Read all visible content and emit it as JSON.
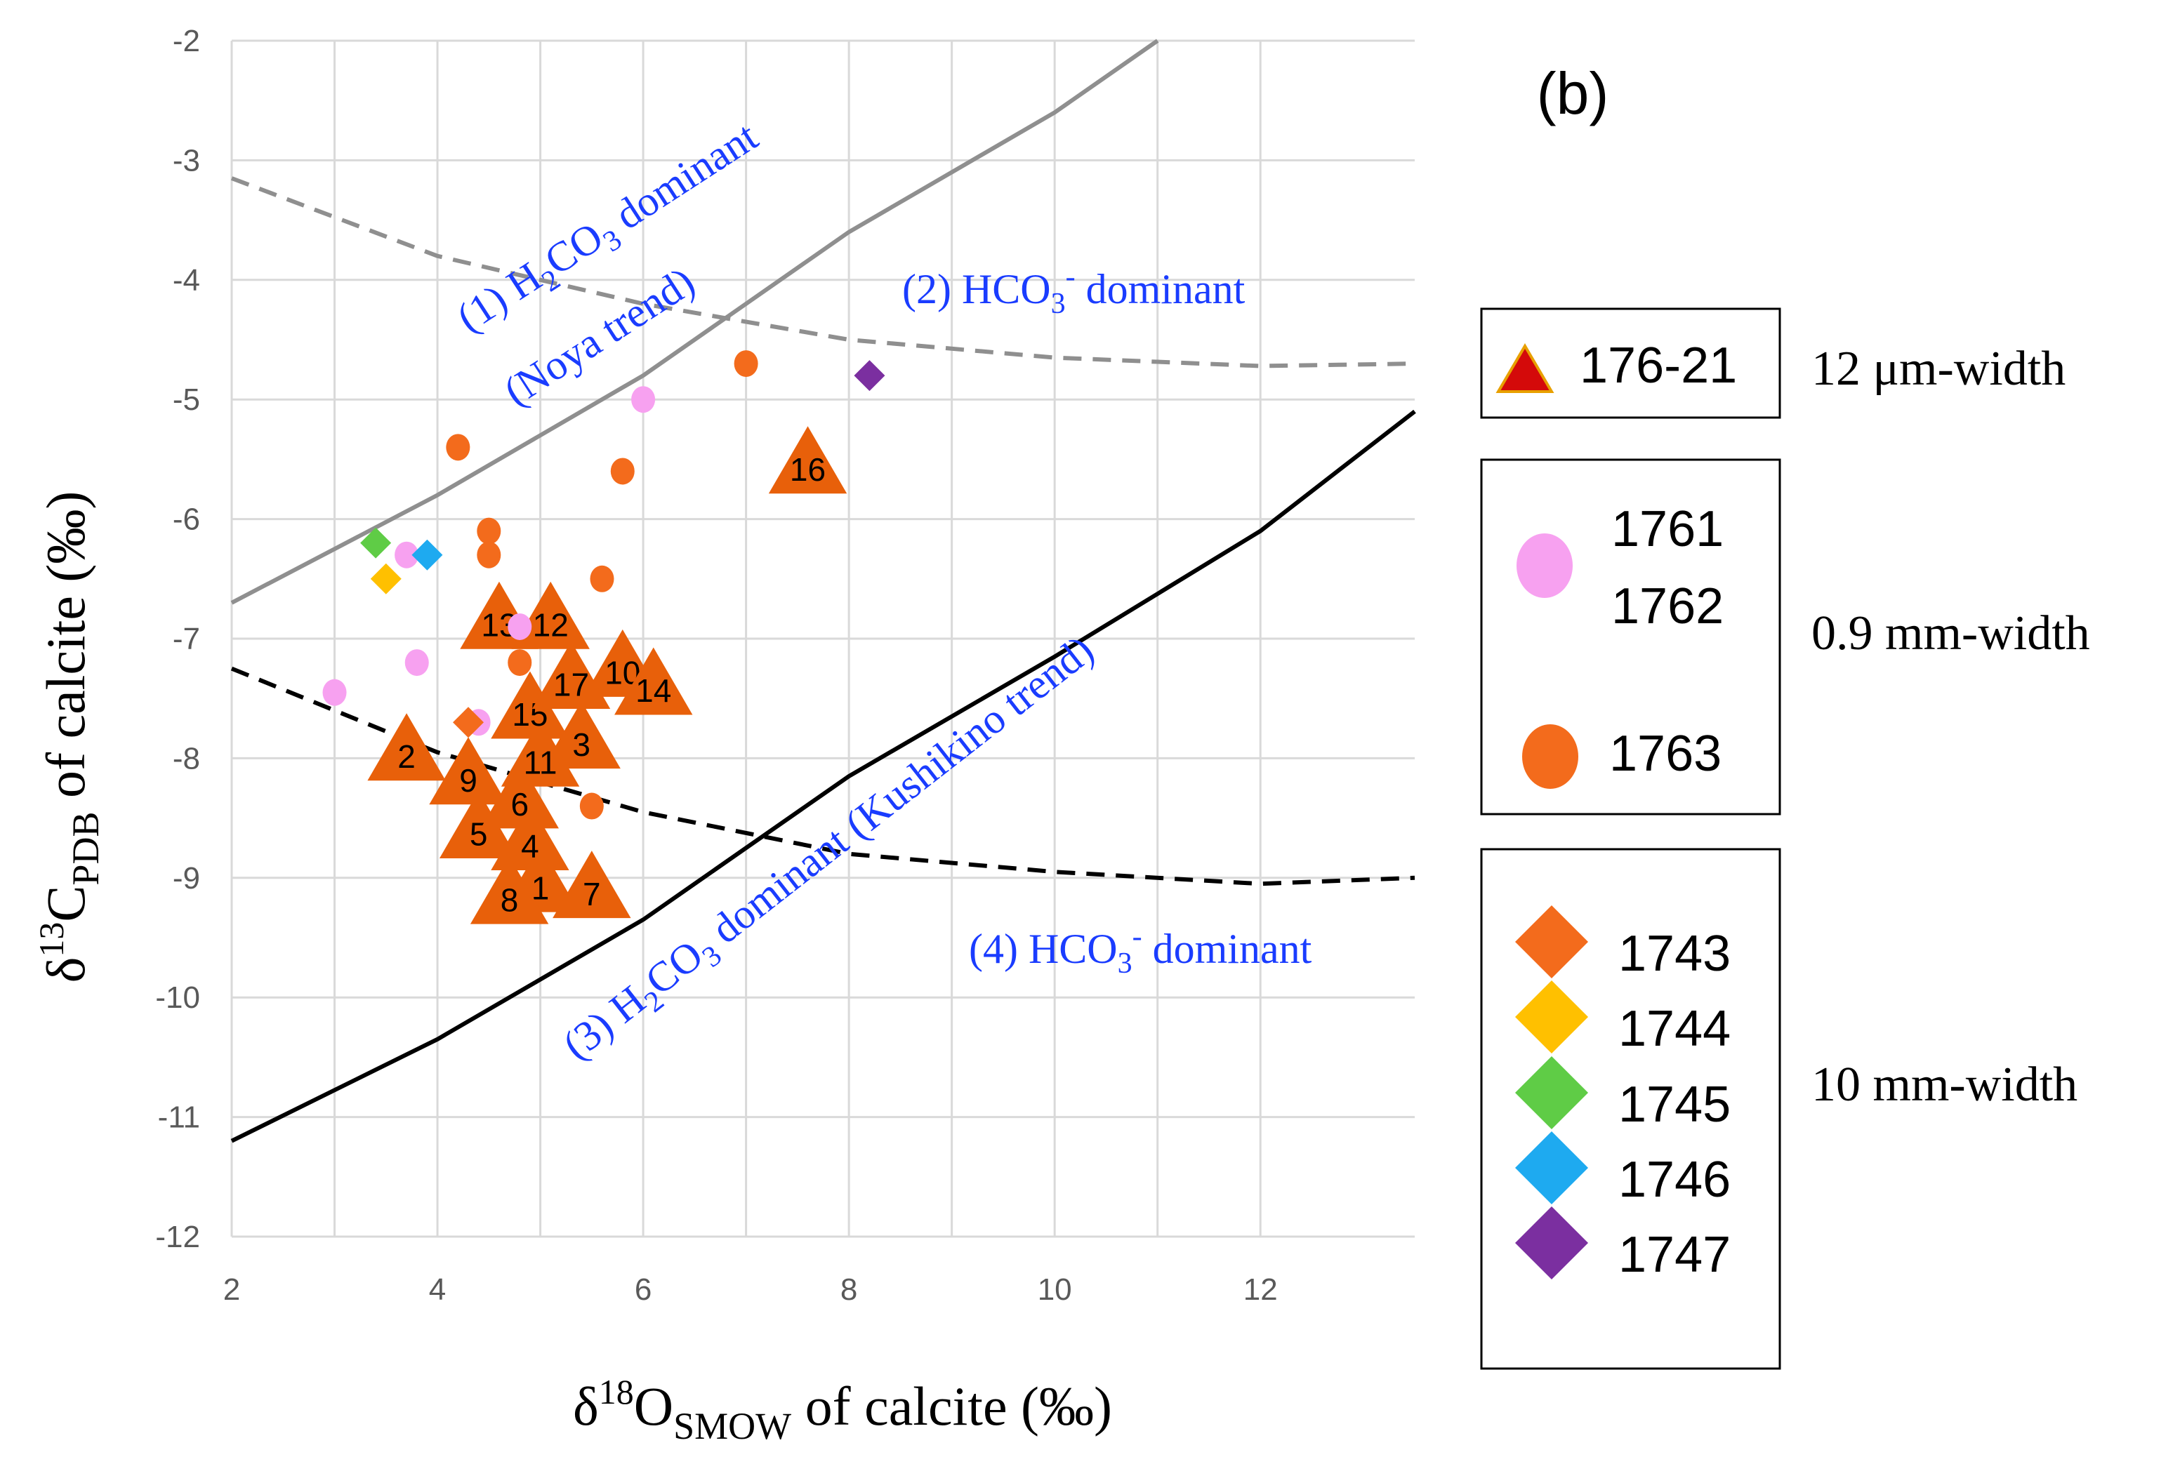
{
  "chart_data": {
    "type": "scatter",
    "panel_label": "(b)",
    "xlabel": {
      "pre": "δ",
      "sup": "18",
      "main": "O",
      "sub": "SMOW",
      "post": " of calcite (‰)"
    },
    "ylabel": {
      "pre": "δ",
      "sup": "13",
      "main": "C",
      "sub": "PDB",
      "post": " of calcite (‰)"
    },
    "xlim": [
      2,
      13.5
    ],
    "ylim": [
      -12,
      -2
    ],
    "x_ticks": [
      2,
      4,
      6,
      8,
      10,
      12
    ],
    "y_ticks": [
      -2,
      -3,
      -4,
      -5,
      -6,
      -7,
      -8,
      -9,
      -10,
      -11,
      -12
    ],
    "grid": true,
    "trend_lines": [
      {
        "name": "H2CO3 dominant (Noya trend)",
        "style": "solid",
        "color": "#8f8f8f",
        "points": [
          [
            2,
            -6.7
          ],
          [
            4,
            -5.8
          ],
          [
            6,
            -4.8
          ],
          [
            8,
            -3.6
          ],
          [
            10,
            -2.6
          ],
          [
            11,
            -2.0
          ]
        ]
      },
      {
        "name": "HCO3- dominant (Noya)",
        "style": "dashed",
        "color": "#8f8f8f",
        "points": [
          [
            2,
            -3.15
          ],
          [
            4,
            -3.8
          ],
          [
            6,
            -4.2
          ],
          [
            8,
            -4.5
          ],
          [
            10,
            -4.65
          ],
          [
            12,
            -4.72
          ],
          [
            13.5,
            -4.7
          ]
        ]
      },
      {
        "name": "H2CO3 dominant (Kushikino trend)",
        "style": "solid",
        "color": "#000000",
        "points": [
          [
            2,
            -11.2
          ],
          [
            4,
            -10.35
          ],
          [
            6,
            -9.35
          ],
          [
            8,
            -8.15
          ],
          [
            10,
            -7.15
          ],
          [
            12,
            -6.1
          ],
          [
            13.5,
            -5.1
          ]
        ]
      },
      {
        "name": "HCO3- dominant (Kushikino)",
        "style": "dashed",
        "color": "#000000",
        "points": [
          [
            2,
            -7.25
          ],
          [
            4,
            -7.95
          ],
          [
            6,
            -8.45
          ],
          [
            8,
            -8.8
          ],
          [
            10,
            -8.95
          ],
          [
            12,
            -9.05
          ],
          [
            13.5,
            -9.0
          ]
        ]
      }
    ],
    "trend_labels": [
      {
        "id": "noya_h2co3_a",
        "pre": "(1) H",
        "sub1": "2",
        "mid": "CO",
        "sub2": "3",
        "post": " dominant"
      },
      {
        "id": "noya_h2co3_b",
        "text": "(Noya trend)"
      },
      {
        "id": "noya_hco3",
        "pre": "(2) HCO",
        "sub1": "3",
        "sup": "-",
        "post": " dominant"
      },
      {
        "id": "kush_h2co3",
        "pre": "(3) H",
        "sub1": "2",
        "mid": "CO",
        "sub2": "3",
        "post": " dominant (Kushikino trend)"
      },
      {
        "id": "kush_hco3",
        "pre": "(4) HCO",
        "sub1": "3",
        "sup": "-",
        "post": " dominant"
      }
    ],
    "series": [
      {
        "name": "176-21",
        "marker": "triangle",
        "color": "#e8600a",
        "points": [
          {
            "label": "1",
            "x": 5.0,
            "y": -9.05
          },
          {
            "label": "2",
            "x": 3.7,
            "y": -7.95
          },
          {
            "label": "3",
            "x": 5.4,
            "y": -7.85
          },
          {
            "label": "4",
            "x": 4.9,
            "y": -8.7
          },
          {
            "label": "5",
            "x": 4.4,
            "y": -8.6
          },
          {
            "label": "6",
            "x": 4.8,
            "y": -8.35
          },
          {
            "label": "7",
            "x": 5.5,
            "y": -9.1
          },
          {
            "label": "8",
            "x": 4.7,
            "y": -9.15
          },
          {
            "label": "9",
            "x": 4.3,
            "y": -8.15
          },
          {
            "label": "10",
            "x": 5.8,
            "y": -7.25
          },
          {
            "label": "11",
            "x": 5.0,
            "y": -8.0
          },
          {
            "label": "12",
            "x": 5.1,
            "y": -6.85
          },
          {
            "label": "13",
            "x": 4.6,
            "y": -6.85
          },
          {
            "label": "14",
            "x": 6.1,
            "y": -7.4
          },
          {
            "label": "15",
            "x": 4.9,
            "y": -7.6
          },
          {
            "label": "16",
            "x": 7.6,
            "y": -5.55
          },
          {
            "label": "17",
            "x": 5.3,
            "y": -7.35
          }
        ]
      },
      {
        "name": "1761/1762",
        "marker": "circle",
        "color": "#f7a1f0",
        "points": [
          [
            3.0,
            -7.45
          ],
          [
            3.7,
            -6.3
          ],
          [
            3.8,
            -7.2
          ],
          [
            4.8,
            -6.9
          ],
          [
            6.0,
            -5.0
          ],
          [
            4.4,
            -7.7
          ]
        ]
      },
      {
        "name": "1763",
        "marker": "circle",
        "color": "#f36b1c",
        "points": [
          [
            4.2,
            -5.4
          ],
          [
            4.5,
            -6.1
          ],
          [
            4.5,
            -6.3
          ],
          [
            4.8,
            -7.2
          ],
          [
            5.5,
            -8.4
          ],
          [
            5.6,
            -6.5
          ],
          [
            5.8,
            -5.6
          ],
          [
            7.0,
            -4.7
          ]
        ]
      },
      {
        "name": "1743",
        "marker": "diamond",
        "color": "#f36b1c",
        "points": [
          [
            4.3,
            -7.7
          ]
        ]
      },
      {
        "name": "1744",
        "marker": "diamond",
        "color": "#ffc000",
        "points": [
          [
            3.5,
            -6.5
          ]
        ]
      },
      {
        "name": "1745",
        "marker": "diamond",
        "color": "#5fcc46",
        "points": [
          [
            3.4,
            -6.2
          ]
        ]
      },
      {
        "name": "1746",
        "marker": "diamond",
        "color": "#1eaaf0",
        "points": [
          [
            3.9,
            -6.3
          ]
        ]
      },
      {
        "name": "1747",
        "marker": "diamond",
        "color": "#7b2fa0",
        "points": [
          [
            8.2,
            -4.8
          ]
        ]
      }
    ],
    "legend": {
      "placement": "right",
      "groups": [
        {
          "width_label": "12 μm-width",
          "items": [
            {
              "code": "176-21",
              "marker": "triangle",
              "color": "#d40a0a"
            }
          ]
        },
        {
          "width_label": "0.9 mm-width",
          "items": [
            {
              "code": "1761\n1762",
              "marker": "circle",
              "color": "#f7a1f0"
            },
            {
              "code": "1763",
              "marker": "circle",
              "color": "#f36b1c"
            }
          ]
        },
        {
          "width_label": "10 mm-width",
          "items": [
            {
              "code": "1743",
              "marker": "diamond",
              "color": "#f36b1c"
            },
            {
              "code": "1744",
              "marker": "diamond",
              "color": "#ffc000"
            },
            {
              "code": "1745",
              "marker": "diamond",
              "color": "#5fcc46"
            },
            {
              "code": "1746",
              "marker": "diamond",
              "color": "#1eaaf0"
            },
            {
              "code": "1747",
              "marker": "diamond",
              "color": "#7b2fa0"
            }
          ]
        }
      ]
    }
  }
}
